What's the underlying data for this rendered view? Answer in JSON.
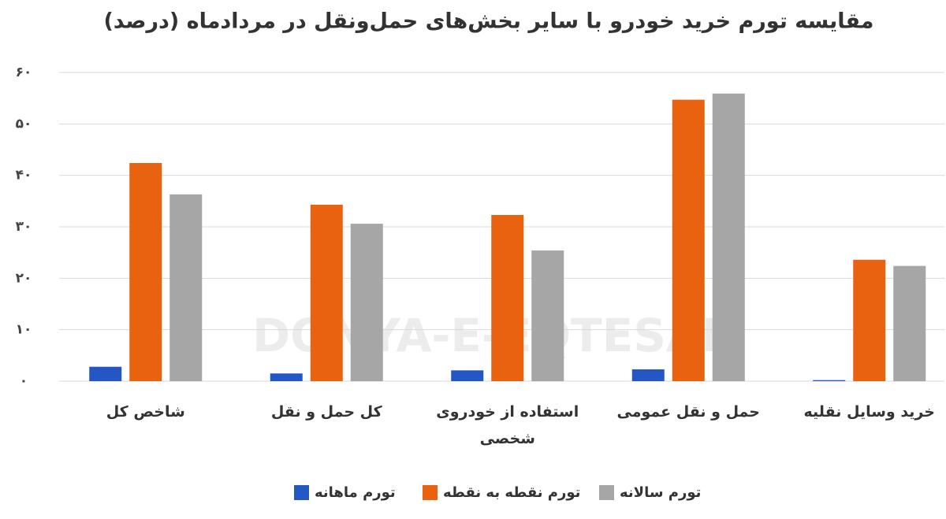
{
  "chart_data": {
    "type": "bar",
    "title": "مقایسه تورم خرید خودرو با سایر بخش‌های حمل‌ونقل در مردادماه (درصد)",
    "watermark": "DONYA-E-EQTESAD",
    "categories": [
      "شاخص کل",
      "کل حمل و نقل",
      "استفاده از خودروی شخصی",
      "حمل و نقل عمومی",
      "خرید وسایل نقلیه"
    ],
    "series": [
      {
        "name": "تورم ماهانه",
        "color": "#2456c4",
        "values": [
          2.8,
          1.5,
          2.1,
          2.3,
          0.2
        ]
      },
      {
        "name": "تورم نقطه به نقطه",
        "color": "#e8620f",
        "values": [
          42.4,
          34.3,
          32.3,
          54.7,
          23.6
        ]
      },
      {
        "name": "تورم سالانه",
        "color": "#a6a6a6",
        "values": [
          36.3,
          30.6,
          25.4,
          55.9,
          22.4
        ]
      }
    ],
    "ylim": [
      0,
      60
    ],
    "yticks": [
      {
        "value": 0,
        "label": "۰"
      },
      {
        "value": 10,
        "label": "۱۰"
      },
      {
        "value": 20,
        "label": "۲۰"
      },
      {
        "value": 30,
        "label": "۳۰"
      },
      {
        "value": 40,
        "label": "۴۰"
      },
      {
        "value": 50,
        "label": "۵۰"
      },
      {
        "value": 60,
        "label": "۶۰"
      }
    ],
    "grid": true
  }
}
